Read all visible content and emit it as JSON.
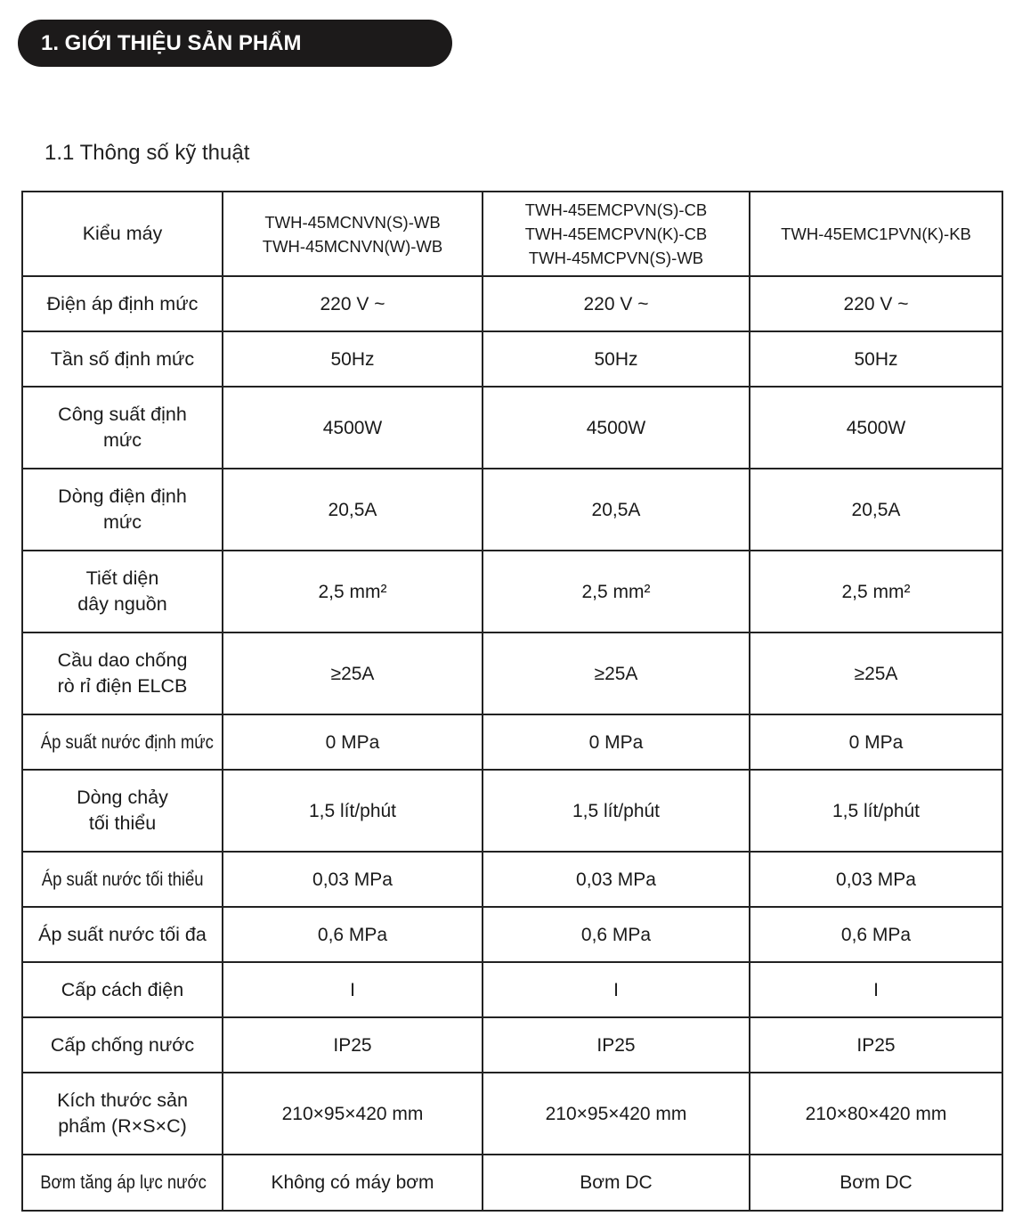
{
  "section_title": "1. GIỚI THIỆU SẢN PHẨM",
  "subsection_title": "1.1 Thông số kỹ thuật",
  "table": {
    "header_label": "Kiểu máy",
    "models": [
      "TWH-45MCNVN(S)-WB\nTWH-45MCNVN(W)-WB",
      "TWH-45EMCPVN(S)-CB\nTWH-45EMCPVN(K)-CB\nTWH-45MCPVN(S)-WB",
      "TWH-45EMC1PVN(K)-KB"
    ],
    "rows": [
      {
        "label": "Điện áp định mức",
        "values": [
          "220 V ~",
          "220 V ~",
          "220 V ~"
        ]
      },
      {
        "label": "Tần số định mức",
        "values": [
          "50Hz",
          "50Hz",
          "50Hz"
        ]
      },
      {
        "label": "Công suất định\nmức",
        "values": [
          "4500W",
          "4500W",
          "4500W"
        ]
      },
      {
        "label": "Dòng điện định\nmức",
        "values": [
          "20,5A",
          "20,5A",
          "20,5A"
        ]
      },
      {
        "label": "Tiết diện\ndây nguồn",
        "values": [
          "2,5 mm²",
          "2,5 mm²",
          "2,5 mm²"
        ]
      },
      {
        "label": "Cầu dao chống\nrò rỉ điện ELCB",
        "values": [
          "≥25A",
          "≥25A",
          "≥25A"
        ]
      },
      {
        "label": "Áp suất nước định mức",
        "values": [
          "0 MPa",
          "0 MPa",
          "0 MPa"
        ]
      },
      {
        "label": "Dòng chảy\ntối thiểu",
        "values": [
          "1,5 lít/phút",
          "1,5 lít/phút",
          "1,5 lít/phút"
        ]
      },
      {
        "label": "Áp suất nước tối thiểu",
        "values": [
          "0,03 MPa",
          "0,03 MPa",
          "0,03 MPa"
        ]
      },
      {
        "label": "Áp suất nước tối đa",
        "values": [
          "0,6 MPa",
          "0,6 MPa",
          "0,6 MPa"
        ]
      },
      {
        "label": "Cấp cách điện",
        "values": [
          "I",
          "I",
          "I"
        ]
      },
      {
        "label": "Cấp chống nước",
        "values": [
          "IP25",
          "IP25",
          "IP25"
        ]
      },
      {
        "label": "Kích thước sản\nphẩm (R×S×C)",
        "values": [
          "210×95×420 mm",
          "210×95×420 mm",
          "210×80×420 mm"
        ]
      },
      {
        "label": "Bơm tăng áp lực nước",
        "values": [
          "Không có máy bơm",
          "Bơm DC",
          "Bơm DC"
        ]
      }
    ]
  }
}
